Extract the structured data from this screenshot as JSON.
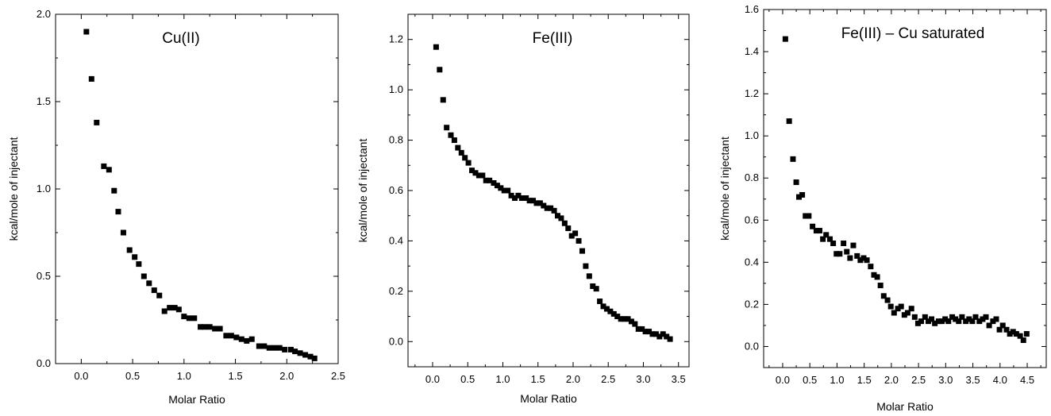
{
  "figure": {
    "background": "#ffffff",
    "marker_color": "#000000"
  },
  "chart_data": [
    {
      "type": "scatter",
      "title": "Cu(II)",
      "xlabel": "Molar Ratio",
      "ylabel": "kcal/mole of injectant",
      "xlim": [
        -0.25,
        2.5
      ],
      "ylim": [
        0.0,
        2.0
      ],
      "xticks": [
        0.0,
        0.5,
        1.0,
        1.5,
        2.0,
        2.5
      ],
      "xtick_labels": [
        "0.0",
        "0.5",
        "1.0",
        "1.5",
        "2.0",
        "2.5"
      ],
      "yticks": [
        0.0,
        0.5,
        1.0,
        1.5,
        2.0
      ],
      "ytick_labels": [
        "0.0",
        "0.5",
        "1.0",
        "1.5",
        "2.0"
      ],
      "grid": false,
      "marker": "square",
      "series": [
        {
          "x": [
            0.05,
            0.1,
            0.15,
            0.22,
            0.27,
            0.32,
            0.36,
            0.41,
            0.47,
            0.52,
            0.56,
            0.61,
            0.66,
            0.71,
            0.76,
            0.81,
            0.86,
            0.91,
            0.95,
            1.0,
            1.05,
            1.1,
            1.16,
            1.2,
            1.25,
            1.3,
            1.35,
            1.41,
            1.46,
            1.51,
            1.56,
            1.61,
            1.66,
            1.73,
            1.78,
            1.83,
            1.88,
            1.93,
            1.98,
            2.04,
            2.08,
            2.13,
            2.18,
            2.23,
            2.27
          ],
          "y": [
            1.9,
            1.63,
            1.38,
            1.13,
            1.11,
            0.99,
            0.87,
            0.75,
            0.65,
            0.61,
            0.57,
            0.5,
            0.46,
            0.42,
            0.39,
            0.3,
            0.32,
            0.32,
            0.31,
            0.27,
            0.26,
            0.26,
            0.21,
            0.21,
            0.21,
            0.2,
            0.2,
            0.16,
            0.16,
            0.15,
            0.14,
            0.13,
            0.14,
            0.1,
            0.1,
            0.09,
            0.09,
            0.09,
            0.08,
            0.08,
            0.07,
            0.06,
            0.05,
            0.04,
            0.03
          ]
        }
      ]
    },
    {
      "type": "scatter",
      "title": "Fe(III)",
      "xlabel": "Molar Ratio",
      "ylabel": "kcal/mole of injectant",
      "xlim": [
        -0.35,
        3.65
      ],
      "ylim": [
        -0.1,
        1.3
      ],
      "xticks": [
        0.0,
        0.5,
        1.0,
        1.5,
        2.0,
        2.5,
        3.0,
        3.5
      ],
      "xtick_labels": [
        "0.0",
        "0.5",
        "1.0",
        "1.5",
        "2.0",
        "2.5",
        "3.0",
        "3.5"
      ],
      "yticks": [
        0.0,
        0.2,
        0.4,
        0.6,
        0.8,
        1.0,
        1.2
      ],
      "ytick_labels": [
        "0.0",
        "0.2",
        "0.4",
        "0.6",
        "0.8",
        "1.0",
        "1.2"
      ],
      "grid": false,
      "marker": "square",
      "series": [
        {
          "x": [
            0.05,
            0.1,
            0.15,
            0.2,
            0.26,
            0.31,
            0.36,
            0.41,
            0.46,
            0.51,
            0.56,
            0.61,
            0.66,
            0.71,
            0.76,
            0.81,
            0.87,
            0.92,
            0.97,
            1.02,
            1.07,
            1.12,
            1.17,
            1.22,
            1.27,
            1.33,
            1.38,
            1.43,
            1.48,
            1.53,
            1.58,
            1.63,
            1.68,
            1.73,
            1.78,
            1.83,
            1.88,
            1.93,
            1.98,
            2.03,
            2.08,
            2.13,
            2.18,
            2.23,
            2.28,
            2.33,
            2.38,
            2.43,
            2.48,
            2.53,
            2.58,
            2.63,
            2.68,
            2.73,
            2.78,
            2.83,
            2.88,
            2.93,
            2.98,
            3.03,
            3.08,
            3.13,
            3.18,
            3.23,
            3.28,
            3.33,
            3.38
          ],
          "y": [
            1.17,
            1.08,
            0.96,
            0.85,
            0.82,
            0.8,
            0.77,
            0.75,
            0.73,
            0.71,
            0.68,
            0.67,
            0.66,
            0.66,
            0.64,
            0.64,
            0.63,
            0.62,
            0.61,
            0.6,
            0.6,
            0.58,
            0.57,
            0.58,
            0.57,
            0.57,
            0.56,
            0.56,
            0.55,
            0.55,
            0.54,
            0.53,
            0.53,
            0.52,
            0.5,
            0.49,
            0.47,
            0.45,
            0.42,
            0.43,
            0.4,
            0.36,
            0.3,
            0.26,
            0.22,
            0.21,
            0.16,
            0.14,
            0.13,
            0.12,
            0.11,
            0.1,
            0.09,
            0.09,
            0.09,
            0.08,
            0.07,
            0.05,
            0.05,
            0.04,
            0.04,
            0.03,
            0.03,
            0.02,
            0.03,
            0.02,
            0.01
          ]
        }
      ]
    },
    {
      "type": "scatter",
      "title": "Fe(III) – Cu saturated",
      "xlabel": "Molar Ratio",
      "ylabel": "kcal/mole of injectant",
      "xlim": [
        -0.35,
        4.85
      ],
      "ylim": [
        -0.1,
        1.6
      ],
      "xticks": [
        0.0,
        0.5,
        1.0,
        1.5,
        2.0,
        2.5,
        3.0,
        3.5,
        4.0,
        4.5
      ],
      "xtick_labels": [
        "0.0",
        "0.5",
        "1.0",
        "1.5",
        "2.0",
        "2.5",
        "3.0",
        "3.5",
        "4.0",
        "4.5"
      ],
      "yticks": [
        0.0,
        0.2,
        0.4,
        0.6,
        0.8,
        1.0,
        1.2,
        1.4,
        1.6
      ],
      "ytick_labels": [
        "0.0",
        "0.2",
        "0.4",
        "0.6",
        "0.8",
        "1.0",
        "1.2",
        "1.4",
        "1.6"
      ],
      "grid": false,
      "marker": "square",
      "series": [
        {
          "x": [
            0.05,
            0.12,
            0.19,
            0.25,
            0.3,
            0.36,
            0.42,
            0.48,
            0.55,
            0.62,
            0.68,
            0.74,
            0.8,
            0.87,
            0.93,
            0.99,
            1.05,
            1.12,
            1.18,
            1.24,
            1.3,
            1.37,
            1.43,
            1.49,
            1.55,
            1.62,
            1.68,
            1.74,
            1.8,
            1.86,
            1.93,
            1.99,
            2.05,
            2.12,
            2.18,
            2.24,
            2.3,
            2.37,
            2.43,
            2.49,
            2.55,
            2.62,
            2.68,
            2.74,
            2.8,
            2.87,
            2.93,
            2.99,
            3.05,
            3.12,
            3.18,
            3.24,
            3.3,
            3.37,
            3.43,
            3.49,
            3.55,
            3.62,
            3.68,
            3.74,
            3.8,
            3.87,
            3.93,
            3.99,
            4.05,
            4.12,
            4.18,
            4.24,
            4.3,
            4.37,
            4.43,
            4.49
          ],
          "y": [
            1.46,
            1.07,
            0.89,
            0.78,
            0.71,
            0.72,
            0.62,
            0.62,
            0.57,
            0.55,
            0.55,
            0.51,
            0.53,
            0.51,
            0.49,
            0.44,
            0.44,
            0.49,
            0.45,
            0.42,
            0.48,
            0.43,
            0.41,
            0.42,
            0.41,
            0.38,
            0.34,
            0.33,
            0.29,
            0.24,
            0.22,
            0.19,
            0.16,
            0.18,
            0.19,
            0.15,
            0.16,
            0.18,
            0.14,
            0.11,
            0.12,
            0.14,
            0.12,
            0.13,
            0.11,
            0.12,
            0.12,
            0.13,
            0.12,
            0.14,
            0.13,
            0.12,
            0.14,
            0.12,
            0.13,
            0.12,
            0.14,
            0.12,
            0.13,
            0.14,
            0.1,
            0.12,
            0.13,
            0.08,
            0.1,
            0.08,
            0.06,
            0.07,
            0.06,
            0.05,
            0.03,
            0.06
          ]
        }
      ]
    }
  ]
}
